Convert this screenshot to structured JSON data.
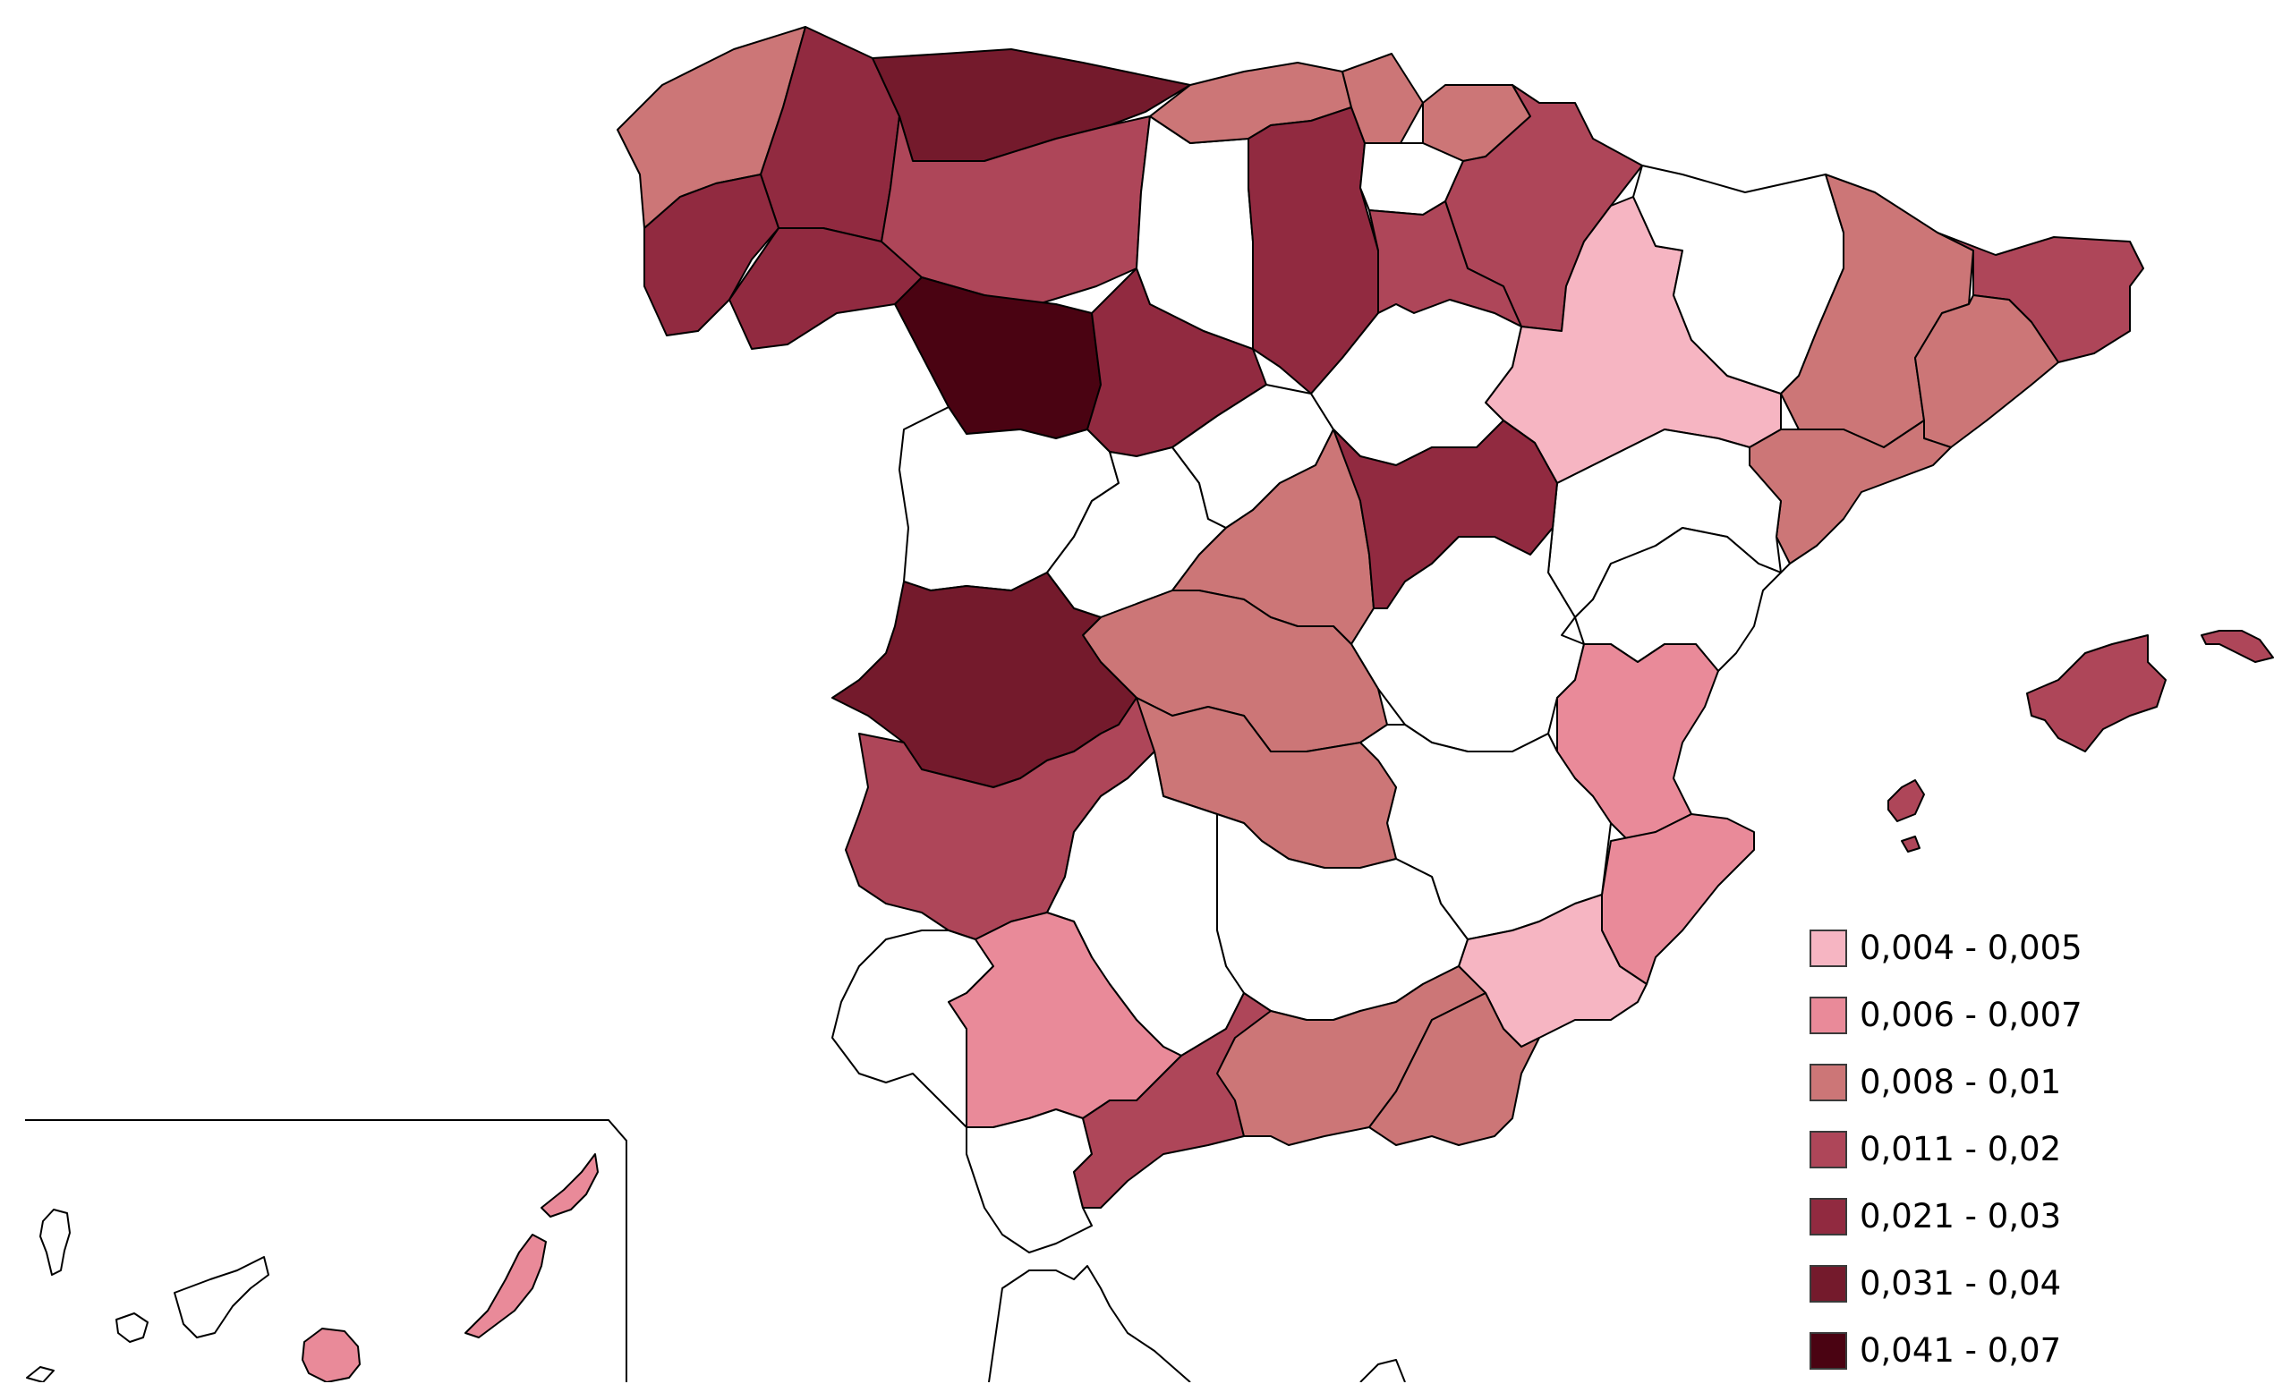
{
  "legend": {
    "classes": [
      {
        "label": "0,004 - 0,005",
        "color": "#f6b5c2"
      },
      {
        "label": "0,006 - 0,007",
        "color": "#e98a99"
      },
      {
        "label": "0,008 - 0,01",
        "color": "#cc7677"
      },
      {
        "label": "0,011 - 0,02",
        "color": "#ae4659"
      },
      {
        "label": "0,021 - 0,03",
        "color": "#912a40"
      },
      {
        "label": "0,031 - 0,04",
        "color": "#741a2c"
      },
      {
        "label": "0,041 - 0,07",
        "color": "#4a0312"
      }
    ]
  },
  "colors": {
    "no_data": "#ffffff",
    "border": "#000000"
  }
}
